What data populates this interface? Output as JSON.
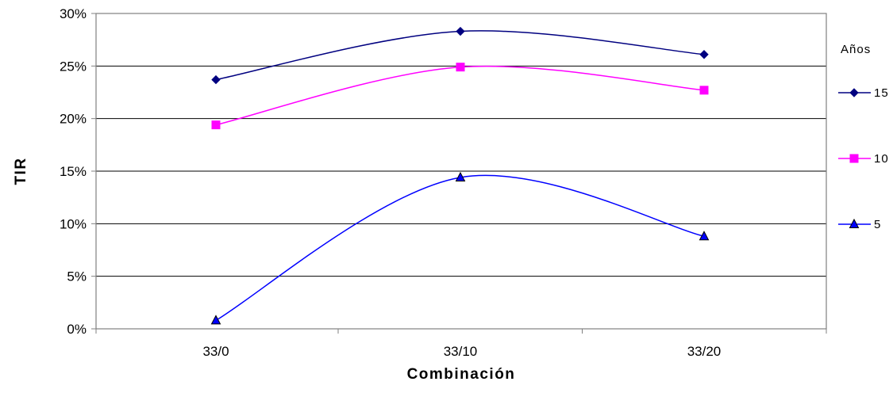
{
  "chart_data": {
    "type": "line",
    "title": "",
    "xlabel": "Combinación",
    "ylabel": "TIR",
    "categories": [
      "33/0",
      "33/10",
      "33/20"
    ],
    "ylim": [
      0,
      0.3
    ],
    "yticks": [
      0,
      0.05,
      0.1,
      0.15,
      0.2,
      0.25,
      0.3
    ],
    "ytick_labels": [
      "0%",
      "5%",
      "10%",
      "15%",
      "20%",
      "25%",
      "30%"
    ],
    "grid": "horizontal",
    "smooth": true,
    "legend": {
      "title": "Años",
      "placement": "right"
    },
    "series": [
      {
        "name": "15",
        "values": [
          0.237,
          0.283,
          0.261
        ],
        "color": "#000080",
        "marker": "diamond"
      },
      {
        "name": "10",
        "values": [
          0.194,
          0.249,
          0.227
        ],
        "color": "#FF00FF",
        "marker": "square"
      },
      {
        "name": "5",
        "values": [
          0.008,
          0.144,
          0.088
        ],
        "color": "#0000FF",
        "marker": "triangle"
      }
    ]
  }
}
